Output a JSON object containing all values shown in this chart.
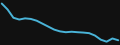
{
  "x": [
    0,
    1,
    2,
    3,
    4,
    5,
    6,
    7,
    8,
    9,
    10,
    11,
    12,
    13,
    14,
    15,
    16,
    17,
    18,
    19,
    20
  ],
  "y": [
    490,
    440,
    370,
    355,
    365,
    360,
    345,
    320,
    295,
    270,
    255,
    248,
    252,
    248,
    245,
    240,
    220,
    185,
    168,
    195,
    180
  ],
  "line_color": "#4ab4d8",
  "line_width": 1.4,
  "background_color": "#111111",
  "ylim": [
    140,
    520
  ],
  "xlim": [
    -0.3,
    20.3
  ]
}
